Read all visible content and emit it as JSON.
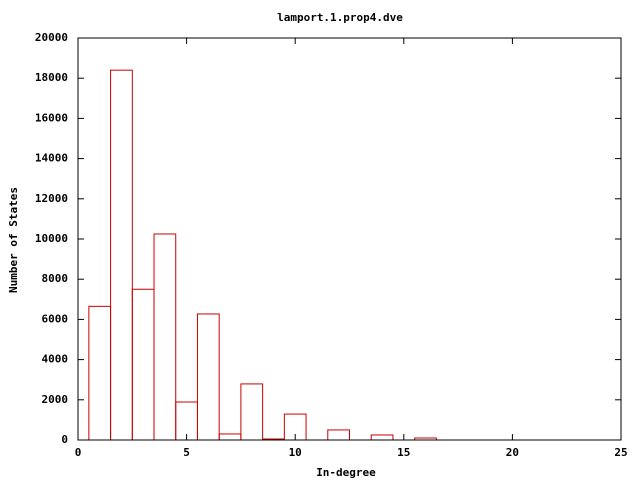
{
  "chart_data": {
    "type": "bar",
    "title": "lamport.1.prop4.dve",
    "x_label": "In-degree",
    "y_label": "Number of States",
    "x": [
      1,
      2,
      3,
      4,
      5,
      6,
      7,
      8,
      9,
      10,
      12,
      14,
      16
    ],
    "values": [
      6650,
      18400,
      7500,
      10250,
      1890,
      6270,
      300,
      2790,
      50,
      1290,
      500,
      250,
      100
    ],
    "color": "#cc0000",
    "xlim": [
      0,
      25
    ],
    "xticks": [
      0,
      5,
      10,
      15,
      20,
      25
    ],
    "ylim": [
      0,
      20000
    ],
    "yticks": [
      0,
      2000,
      4000,
      6000,
      8000,
      10000,
      12000,
      14000,
      16000,
      18000,
      20000
    ]
  }
}
